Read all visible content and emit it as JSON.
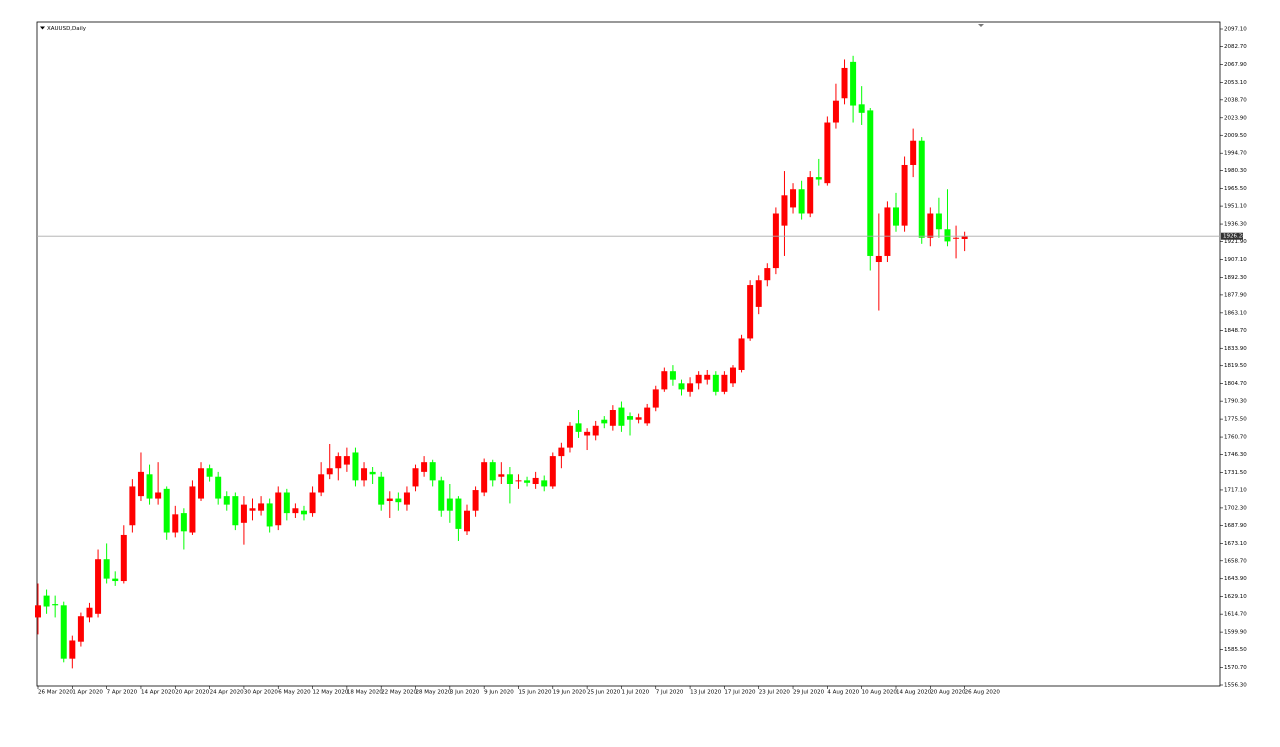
{
  "chart_data": {
    "type": "candlestick",
    "title": "XAUUSD,Daily",
    "categories": [
      "26 Mar 2020",
      null,
      null,
      null,
      "1 Apr 2020",
      null,
      null,
      null,
      "7 Apr 2020",
      null,
      null,
      null,
      "14 Apr 2020",
      null,
      null,
      null,
      "20 Apr 2020",
      null,
      null,
      null,
      "24 Apr 2020",
      null,
      null,
      null,
      "30 Apr 2020",
      null,
      null,
      null,
      "6 May 2020",
      null,
      null,
      null,
      "12 May 2020",
      null,
      null,
      null,
      "18 May 2020",
      null,
      null,
      null,
      "22 May 2020",
      null,
      null,
      null,
      "28 May 2020",
      null,
      null,
      null,
      "3 Jun 2020",
      null,
      null,
      null,
      "9 Jun 2020",
      null,
      null,
      null,
      "15 Jun 2020",
      null,
      null,
      null,
      "19 Jun 2020",
      null,
      null,
      null,
      "25 Jun 2020",
      null,
      null,
      null,
      "1 Jul 2020",
      null,
      null,
      null,
      "7 Jul 2020",
      null,
      null,
      null,
      "13 Jul 2020",
      null,
      null,
      null,
      "17 Jul 2020",
      null,
      null,
      null,
      "23 Jul 2020",
      null,
      null,
      null,
      "29 Jul 2020",
      null,
      null,
      null,
      "4 Aug 2020",
      null,
      null,
      null,
      "10 Aug 2020",
      null,
      null,
      null,
      "14 Aug 2020",
      null,
      null,
      null,
      "20 Aug 2020",
      null,
      null,
      null,
      "26 Aug 2020"
    ],
    "open": [
      1612,
      1630,
      1623,
      1622,
      1578,
      1592,
      1612,
      1615,
      1660,
      1644,
      1642,
      1688,
      1712,
      1730,
      1710,
      1718,
      1682,
      1698,
      1682,
      1710,
      1735,
      1728,
      1712,
      1712,
      1690,
      1700,
      1700,
      1706,
      1688,
      1715,
      1698,
      1700,
      1698,
      1715,
      1730,
      1735,
      1738,
      1748,
      1725,
      1732,
      1728,
      1708,
      1710,
      1705,
      1720,
      1732,
      1740,
      1725,
      1710,
      1710,
      1683,
      1700,
      1715,
      1740,
      1728,
      1730,
      1725,
      1725,
      1722,
      1725,
      1720,
      1745,
      1752,
      1772,
      1762,
      1762,
      1775,
      1770,
      1785,
      1778,
      1775,
      1772,
      1785,
      1800,
      1815,
      1805,
      1798,
      1805,
      1808,
      1812,
      1798,
      1805,
      1816,
      1842,
      1868,
      1890,
      1900,
      1935,
      1950,
      1965,
      1945,
      1975,
      1970,
      2020,
      2040,
      2070,
      2035,
      2030,
      1905,
      1910,
      1950,
      1935,
      1985,
      2005,
      1925,
      1945,
      1932,
      1925,
      1924
    ],
    "high": [
      1640,
      1635,
      1630,
      1625,
      1597,
      1616,
      1624,
      1668,
      1673,
      1650,
      1688,
      1726,
      1748,
      1738,
      1740,
      1720,
      1704,
      1702,
      1725,
      1740,
      1738,
      1732,
      1716,
      1715,
      1712,
      1710,
      1712,
      1710,
      1720,
      1718,
      1706,
      1704,
      1720,
      1740,
      1755,
      1748,
      1752,
      1752,
      1740,
      1736,
      1732,
      1716,
      1715,
      1720,
      1738,
      1745,
      1742,
      1728,
      1722,
      1712,
      1705,
      1720,
      1743,
      1742,
      1740,
      1736,
      1730,
      1728,
      1732,
      1729,
      1748,
      1756,
      1773,
      1783,
      1768,
      1774,
      1778,
      1787,
      1790,
      1781,
      1780,
      1788,
      1803,
      1818,
      1820,
      1808,
      1810,
      1815,
      1816,
      1815,
      1815,
      1820,
      1845,
      1890,
      1894,
      1904,
      1950,
      1980,
      1970,
      1972,
      1980,
      1990,
      2025,
      2052,
      2072,
      2075,
      2050,
      2032,
      1945,
      1955,
      1962,
      1992,
      2015,
      2008,
      1950,
      1958,
      1965,
      1935,
      1930
    ],
    "low": [
      1598,
      1615,
      1612,
      1575,
      1570,
      1588,
      1608,
      1612,
      1640,
      1638,
      1640,
      1682,
      1708,
      1705,
      1705,
      1676,
      1678,
      1668,
      1680,
      1708,
      1724,
      1705,
      1700,
      1684,
      1672,
      1692,
      1696,
      1682,
      1684,
      1692,
      1694,
      1692,
      1695,
      1712,
      1726,
      1725,
      1732,
      1720,
      1720,
      1722,
      1700,
      1694,
      1700,
      1700,
      1716,
      1728,
      1720,
      1695,
      1690,
      1675,
      1680,
      1695,
      1712,
      1720,
      1722,
      1706,
      1718,
      1720,
      1718,
      1716,
      1718,
      1735,
      1748,
      1760,
      1750,
      1758,
      1768,
      1766,
      1765,
      1762,
      1772,
      1770,
      1782,
      1798,
      1803,
      1795,
      1794,
      1800,
      1804,
      1795,
      1796,
      1802,
      1814,
      1840,
      1862,
      1885,
      1895,
      1910,
      1945,
      1940,
      1942,
      1968,
      1968,
      2015,
      2035,
      2020,
      2018,
      1898,
      1865,
      1905,
      1930,
      1930,
      1975,
      1920,
      1918,
      1925,
      1918,
      1908,
      1914
    ],
    "close": [
      1622,
      1621,
      1622,
      1578,
      1593,
      1613,
      1620,
      1660,
      1644,
      1642,
      1680,
      1720,
      1732,
      1710,
      1715,
      1682,
      1697,
      1683,
      1720,
      1735,
      1728,
      1710,
      1705,
      1688,
      1705,
      1702,
      1706,
      1687,
      1715,
      1698,
      1702,
      1697,
      1715,
      1730,
      1735,
      1745,
      1745,
      1725,
      1735,
      1730,
      1705,
      1710,
      1707,
      1715,
      1735,
      1740,
      1725,
      1700,
      1700,
      1685,
      1700,
      1717,
      1740,
      1725,
      1730,
      1722,
      1725,
      1723,
      1727,
      1720,
      1745,
      1752,
      1770,
      1765,
      1765,
      1770,
      1772,
      1783,
      1770,
      1775,
      1777,
      1785,
      1800,
      1815,
      1808,
      1800,
      1805,
      1812,
      1812,
      1798,
      1812,
      1818,
      1842,
      1886,
      1890,
      1900,
      1945,
      1960,
      1965,
      1945,
      1975,
      1973,
      2020,
      2038,
      2065,
      2034,
      2028,
      1910,
      1910,
      1950,
      1935,
      1985,
      2005,
      1925,
      1945,
      1932,
      1922,
      1925,
      1926
    ],
    "up_color": "#ff0000",
    "down_color": "#00ff00",
    "current_price": 1926.28,
    "ylim": [
      1556.3,
      2097.1
    ],
    "yticks": [
      {
        "value": 2097.1,
        "label": "2097.10"
      },
      {
        "value": 2082.7,
        "label": "2082.70"
      },
      {
        "value": 2067.9,
        "label": "2067.90"
      },
      {
        "value": 2053.1,
        "label": "2053.10"
      },
      {
        "value": 2038.7,
        "label": "2038.70"
      },
      {
        "value": 2023.9,
        "label": "2023.90"
      },
      {
        "value": 2009.5,
        "label": "2009.50"
      },
      {
        "value": 1994.7,
        "label": "1994.70"
      },
      {
        "value": 1980.3,
        "label": "1980.30"
      },
      {
        "value": 1965.5,
        "label": "1965.50"
      },
      {
        "value": 1951.1,
        "label": "1951.10"
      },
      {
        "value": 1936.3,
        "label": "1936.30"
      },
      {
        "value": 1921.9,
        "label": "1921.90"
      },
      {
        "value": 1907.1,
        "label": "1907.10"
      },
      {
        "value": 1892.3,
        "label": "1892.30"
      },
      {
        "value": 1877.9,
        "label": "1877.90"
      },
      {
        "value": 1863.1,
        "label": "1863.10"
      },
      {
        "value": 1848.7,
        "label": "1848.70"
      },
      {
        "value": 1833.9,
        "label": "1833.90"
      },
      {
        "value": 1819.5,
        "label": "1819.50"
      },
      {
        "value": 1804.7,
        "label": "1804.70"
      },
      {
        "value": 1790.3,
        "label": "1790.30"
      },
      {
        "value": 1775.5,
        "label": "1775.50"
      },
      {
        "value": 1760.7,
        "label": "1760.70"
      },
      {
        "value": 1746.3,
        "label": "1746.30"
      },
      {
        "value": 1731.5,
        "label": "1731.50"
      },
      {
        "value": 1717.1,
        "label": "1717.10"
      },
      {
        "value": 1702.3,
        "label": "1702.30"
      },
      {
        "value": 1687.9,
        "label": "1687.90"
      },
      {
        "value": 1673.1,
        "label": "1673.10"
      },
      {
        "value": 1658.7,
        "label": "1658.70"
      },
      {
        "value": 1643.9,
        "label": "1643.90"
      },
      {
        "value": 1629.1,
        "label": "1629.10"
      },
      {
        "value": 1614.7,
        "label": "1614.70"
      },
      {
        "value": 1599.9,
        "label": "1599.90"
      },
      {
        "value": 1585.5,
        "label": "1585.50"
      },
      {
        "value": 1570.7,
        "label": "1570.70"
      },
      {
        "value": 1556.3,
        "label": "1556.30"
      }
    ]
  }
}
